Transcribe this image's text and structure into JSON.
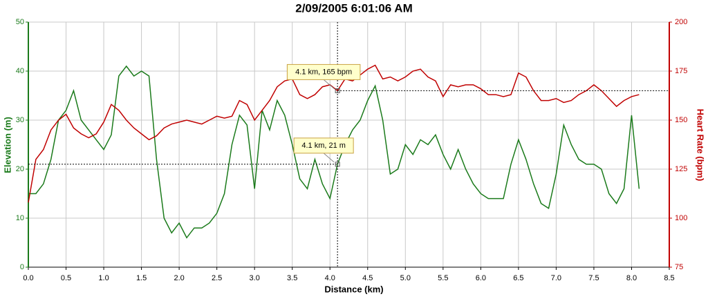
{
  "chart_data": {
    "type": "line",
    "title": "2/09/2005 6:01:06 AM",
    "x_label": "Distance (km)",
    "y_label": "Elevation (m)",
    "y2_label": "Heart Rate (bpm)",
    "grid": true,
    "xlim": [
      0,
      8.5
    ],
    "xticks": [
      {
        "value": 0,
        "label": "0.0"
      },
      0.5,
      {
        "value": 1,
        "label": "1.0"
      },
      1.5,
      {
        "value": 2,
        "label": "2.0"
      },
      2.5,
      {
        "value": 3,
        "label": "3.0"
      },
      3.5,
      {
        "value": 4,
        "label": "4.0"
      },
      4.5,
      {
        "value": 5,
        "label": "5.0"
      },
      5.5,
      {
        "value": 6,
        "label": "6.0"
      },
      6.5,
      {
        "value": 7,
        "label": "7.0"
      },
      7.5,
      {
        "value": 8,
        "label": "8.0"
      },
      8.5
    ],
    "ylim": [
      0,
      50
    ],
    "yticks": [
      0,
      10,
      20,
      30,
      40,
      50
    ],
    "y2lim": [
      75,
      200
    ],
    "y2ticks": [
      75,
      100,
      125,
      150,
      175,
      200
    ],
    "y_color": "#1a7a1a",
    "y2_color": "#c00000",
    "x": [
      0,
      0.1,
      0.2,
      0.3,
      0.4,
      0.5,
      0.6,
      0.7,
      0.8,
      0.9,
      1,
      1.1,
      1.2,
      1.3,
      1.4,
      1.5,
      1.6,
      1.7,
      1.8,
      1.9,
      2,
      2.1,
      2.2,
      2.3,
      2.4,
      2.5,
      2.6,
      2.7,
      2.8,
      2.9,
      3,
      3.1,
      3.2,
      3.3,
      3.4,
      3.5,
      3.6,
      3.7,
      3.8,
      3.9,
      4,
      4.1,
      4.2,
      4.3,
      4.4,
      4.5,
      4.6,
      4.7,
      4.8,
      4.9,
      5,
      5.1,
      5.2,
      5.3,
      5.4,
      5.5,
      5.6,
      5.7,
      5.8,
      5.9,
      6,
      6.1,
      6.2,
      6.3,
      6.4,
      6.5,
      6.6,
      6.7,
      6.8,
      6.9,
      7,
      7.1,
      7.2,
      7.3,
      7.4,
      7.5,
      7.6,
      7.7,
      7.8,
      7.9,
      8,
      8.1
    ],
    "series": [
      {
        "name": "Elevation",
        "color": "#1a7a1a",
        "axis": "y",
        "values": [
          15,
          15,
          17,
          22,
          30,
          32,
          36,
          30,
          28,
          26,
          24,
          27,
          39,
          41,
          39,
          40,
          39,
          22,
          10,
          7,
          9,
          6,
          8,
          8,
          9,
          11,
          15,
          25,
          31,
          29,
          16,
          32,
          28,
          34,
          31,
          25,
          18,
          16,
          22,
          17,
          14,
          21,
          25,
          28,
          30,
          34,
          37,
          30,
          19,
          20,
          25,
          23,
          26,
          25,
          27,
          23,
          20,
          24,
          20,
          17,
          15,
          14,
          14,
          14,
          21,
          26,
          22,
          17,
          13,
          12,
          19,
          29,
          25,
          22,
          21,
          21,
          20,
          15,
          13,
          16,
          31,
          16
        ]
      },
      {
        "name": "Heart Rate",
        "color": "#c00000",
        "axis": "y2",
        "values": [
          108,
          130,
          135,
          145,
          150,
          153,
          146,
          143,
          141,
          143,
          149,
          158,
          155,
          150,
          146,
          143,
          140,
          142,
          146,
          148,
          149,
          150,
          149,
          148,
          150,
          152,
          151,
          152,
          160,
          158,
          150,
          155,
          160,
          167,
          170,
          171,
          163,
          161,
          163,
          167,
          168,
          165,
          171,
          170,
          173,
          176,
          178,
          171,
          172,
          170,
          172,
          175,
          176,
          172,
          170,
          162,
          168,
          167,
          168,
          168,
          166,
          163,
          163,
          162,
          163,
          174,
          172,
          165,
          160,
          160,
          161,
          159,
          160,
          163,
          165,
          168,
          165,
          161,
          157,
          160,
          162,
          163
        ]
      }
    ],
    "annotations": [
      {
        "text": "4.1 km, 165 bpm",
        "x": 4.1,
        "y": 165,
        "axis": "y2"
      },
      {
        "text": "4.1 km, 21 m",
        "x": 4.1,
        "y": 21,
        "axis": "y"
      }
    ]
  }
}
